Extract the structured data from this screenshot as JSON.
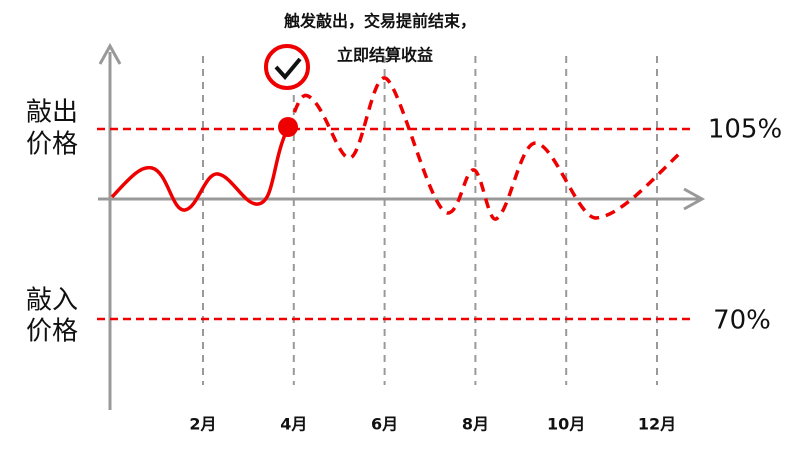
{
  "annotation": {
    "lines": [
      "触发敲出，交易提前结束，",
      "立即结算收益"
    ]
  },
  "levels": [
    {
      "label_lines": [
        "敲出",
        "价格"
      ],
      "value": "105%"
    },
    {
      "label_lines": [
        "敲入",
        "价格"
      ],
      "value": "70%"
    }
  ],
  "x_axis": {
    "labels": [
      "2月",
      "4月",
      "6月",
      "8月",
      "10月",
      "12月"
    ]
  }
}
